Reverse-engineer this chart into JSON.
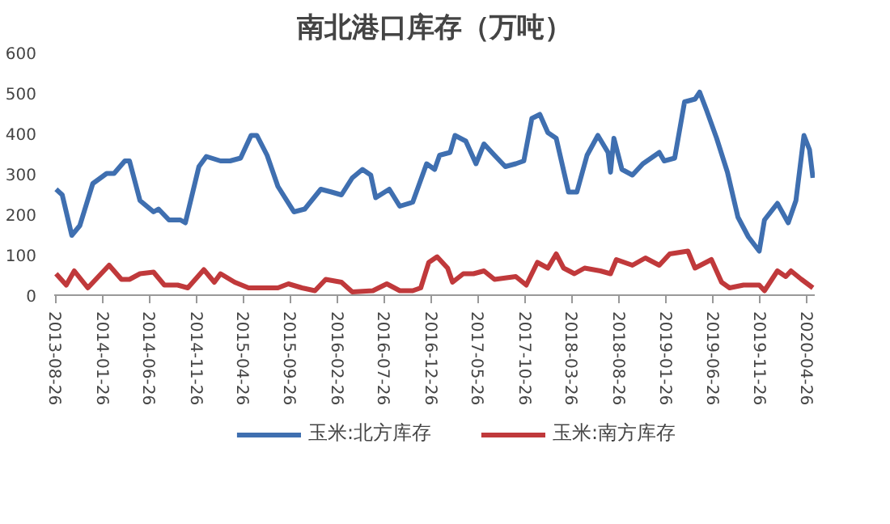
{
  "chart_data": {
    "type": "line",
    "title": "南北港口库存（万吨）",
    "xlim": [
      "2013-08-20",
      "2020-05-20"
    ],
    "ylim": [
      0,
      600
    ],
    "yticks": [
      0,
      100,
      200,
      300,
      400,
      500,
      600
    ],
    "xticks": [
      "2013-08-26",
      "2014-01-26",
      "2014-06-26",
      "2014-11-26",
      "2015-04-26",
      "2015-09-26",
      "2016-02-26",
      "2016-07-26",
      "2016-12-26",
      "2017-05-26",
      "2017-10-26",
      "2018-03-26",
      "2018-08-26",
      "2019-01-26",
      "2019-06-26",
      "2019-11-26",
      "2020-04-26"
    ],
    "grid": false,
    "legend": "bottom",
    "marker": "none",
    "line_style": "solid",
    "series": [
      {
        "name": "玉米:北方库存",
        "color": "#3f6fb0",
        "x": [
          "2013-08-26",
          "2013-09-15",
          "2013-10-16",
          "2013-11-11",
          "2013-12-23",
          "2014-02-06",
          "2014-03-02",
          "2014-04-06",
          "2014-04-21",
          "2014-05-25",
          "2014-07-08",
          "2014-07-24",
          "2014-08-27",
          "2014-10-03",
          "2014-10-19",
          "2014-12-02",
          "2014-12-26",
          "2015-02-10",
          "2015-03-13",
          "2015-04-16",
          "2015-05-20",
          "2015-06-08",
          "2015-07-11",
          "2015-08-15",
          "2015-10-06",
          "2015-11-10",
          "2016-01-01",
          "2016-02-05",
          "2016-03-08",
          "2016-04-12",
          "2016-05-15",
          "2016-06-11",
          "2016-06-27",
          "2016-08-10",
          "2016-09-13",
          "2016-10-25",
          "2016-12-09",
          "2017-01-04",
          "2017-01-20",
          "2017-02-23",
          "2017-03-11",
          "2017-04-15",
          "2017-05-18",
          "2017-06-13",
          "2017-07-17",
          "2017-08-21",
          "2017-09-24",
          "2017-10-20",
          "2017-11-15",
          "2017-12-11",
          "2018-01-06",
          "2018-02-02",
          "2018-03-14",
          "2018-04-10",
          "2018-05-13",
          "2018-06-17",
          "2018-07-20",
          "2018-07-28",
          "2018-08-08",
          "2018-09-03",
          "2018-10-07",
          "2018-11-10",
          "2019-01-02",
          "2019-01-18",
          "2019-02-21",
          "2019-03-25",
          "2019-04-28",
          "2019-05-13",
          "2019-06-04",
          "2019-07-07",
          "2019-08-11",
          "2019-09-14",
          "2019-10-18",
          "2019-11-22",
          "2019-12-09",
          "2020-01-20",
          "2020-02-24",
          "2020-03-20",
          "2020-04-15",
          "2020-05-03",
          "2020-05-14"
        ],
        "values": [
          262,
          248,
          148,
          172,
          276,
          301,
          301,
          332,
          332,
          234,
          206,
          213,
          186,
          186,
          179,
          318,
          343,
          332,
          332,
          339,
          395,
          395,
          346,
          269,
          206,
          213,
          262,
          255,
          248,
          290,
          311,
          297,
          241,
          262,
          220,
          230,
          325,
          311,
          346,
          353,
          395,
          381,
          325,
          374,
          346,
          318,
          325,
          332,
          437,
          447,
          402,
          388,
          255,
          255,
          346,
          395,
          353,
          304,
          388,
          311,
          297,
          325,
          353,
          332,
          339,
          478,
          485,
          502,
          458,
          388,
          304,
          193,
          144,
          109,
          186,
          227,
          179,
          234,
          395,
          360,
          290
        ]
      },
      {
        "name": "玉米:南方库存",
        "color": "#c0393b",
        "x": [
          "2013-08-26",
          "2013-09-28",
          "2013-10-24",
          "2013-12-07",
          "2014-01-19",
          "2014-02-14",
          "2014-03-26",
          "2014-04-21",
          "2014-05-25",
          "2014-07-08",
          "2014-08-12",
          "2014-09-24",
          "2014-10-27",
          "2014-12-18",
          "2015-01-21",
          "2015-02-10",
          "2015-03-28",
          "2015-05-12",
          "2015-07-11",
          "2015-08-15",
          "2015-09-18",
          "2015-11-01",
          "2015-12-13",
          "2016-01-17",
          "2016-03-08",
          "2016-04-12",
          "2016-06-18",
          "2016-08-02",
          "2016-09-13",
          "2016-10-25",
          "2016-11-20",
          "2016-12-16",
          "2017-01-12",
          "2017-02-15",
          "2017-03-03",
          "2017-04-07",
          "2017-05-10",
          "2017-06-13",
          "2017-07-17",
          "2017-09-24",
          "2017-10-28",
          "2017-12-03",
          "2018-01-06",
          "2018-02-02",
          "2018-02-26",
          "2018-04-02",
          "2018-05-05",
          "2018-06-25",
          "2018-07-28",
          "2018-08-16",
          "2018-10-07",
          "2018-11-18",
          "2019-01-02",
          "2019-02-05",
          "2019-04-05",
          "2019-04-28",
          "2019-06-20",
          "2019-07-23",
          "2019-08-18",
          "2019-10-02",
          "2019-11-22",
          "2019-12-09",
          "2020-01-20",
          "2020-02-16",
          "2020-03-04",
          "2020-04-07",
          "2020-05-14"
        ],
        "values": [
          53,
          25,
          60,
          18,
          53,
          74,
          39,
          39,
          53,
          57,
          25,
          25,
          18,
          63,
          32,
          53,
          32,
          18,
          18,
          18,
          28,
          18,
          11,
          39,
          32,
          8,
          11,
          28,
          11,
          11,
          18,
          81,
          95,
          67,
          32,
          53,
          53,
          60,
          39,
          46,
          25,
          81,
          67,
          102,
          67,
          53,
          67,
          60,
          53,
          88,
          74,
          92,
          74,
          102,
          109,
          67,
          88,
          32,
          18,
          25,
          25,
          11,
          60,
          46,
          60,
          39,
          18
        ]
      }
    ]
  }
}
